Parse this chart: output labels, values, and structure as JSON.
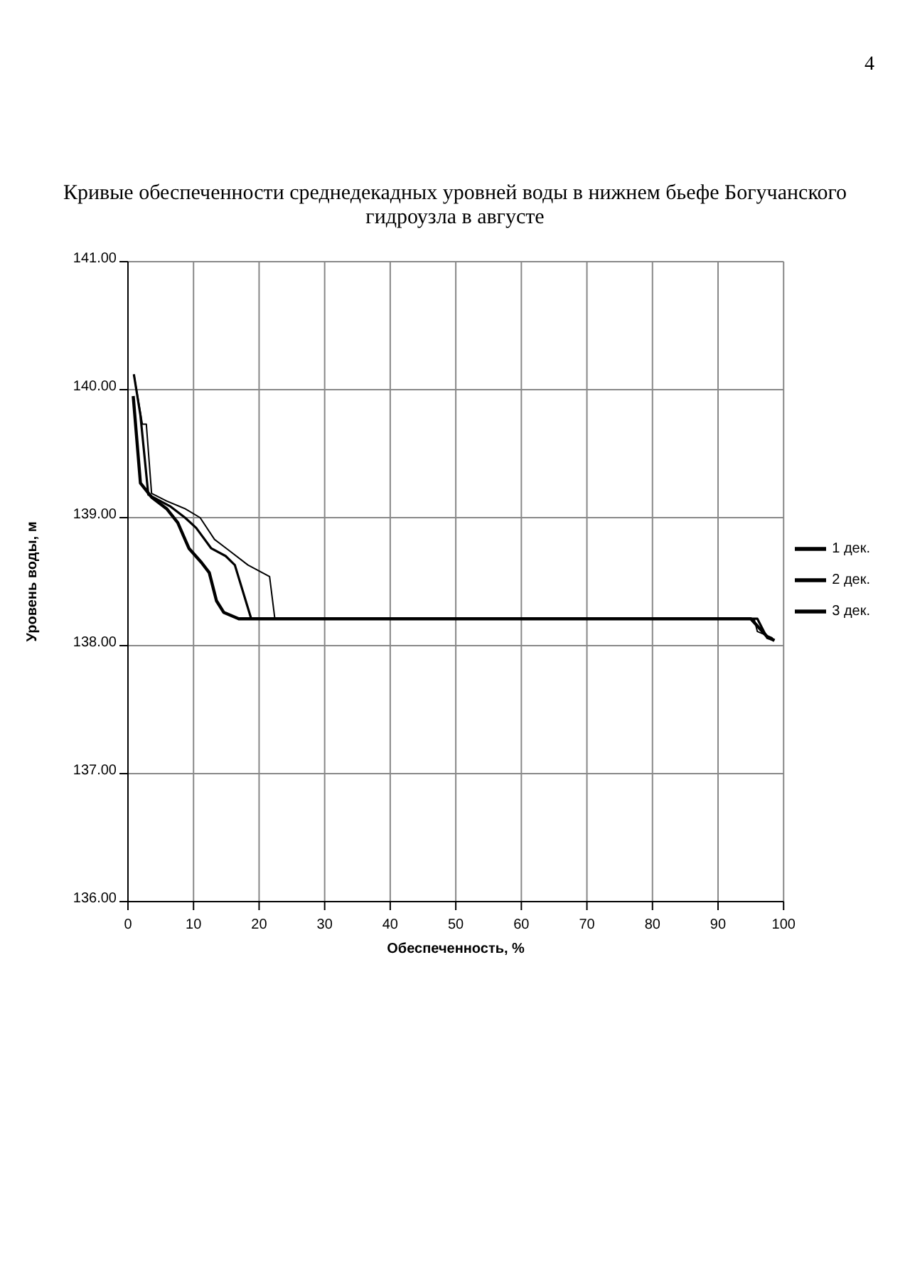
{
  "chart_data": {
    "type": "line",
    "title": "Кривые обеспеченности среднедекадных уровней воды в нижнем бьефе Богучанского гидроузла в августе",
    "xlabel": "Обеспеченность, %",
    "ylabel": "Уровень воды, м",
    "annotations": [
      "4"
    ],
    "xlim": [
      0,
      100
    ],
    "xticks": [
      0,
      10,
      20,
      30,
      40,
      50,
      60,
      70,
      80,
      90,
      100
    ],
    "ylim": [
      136,
      141
    ],
    "yticks": [
      {
        "value": 136,
        "label": "136.00"
      },
      {
        "value": 137,
        "label": "137.00"
      },
      {
        "value": 138,
        "label": "138.00"
      },
      {
        "value": 139,
        "label": "139.00"
      },
      {
        "value": 140,
        "label": "140.00"
      },
      {
        "value": 141,
        "label": "141.00"
      }
    ],
    "grid": true,
    "legend": "right",
    "marker": "none",
    "series": [
      {
        "name": "1 дек.",
        "color": "#000000",
        "x": [
          0.8,
          1.9,
          3.6,
          5.9,
          7.6,
          9.3,
          11.2,
          12.4,
          13.5,
          14.6,
          16.9,
          18.8,
          95,
          97.5,
          98.6
        ],
        "values": [
          139.95,
          139.27,
          139.16,
          139.07,
          138.96,
          138.76,
          138.65,
          138.57,
          138.35,
          138.26,
          138.21,
          138.21,
          138.21,
          138.07,
          138.04
        ]
      },
      {
        "name": "2 дек.",
        "color": "#000000",
        "x": [
          0.9,
          1.9,
          3.1,
          6.4,
          8.7,
          10.4,
          12.7,
          14.9,
          16.3,
          18.8,
          96,
          96.5,
          97.5,
          98.6
        ],
        "values": [
          140.12,
          139.8,
          139.18,
          139.09,
          139.0,
          138.92,
          138.76,
          138.7,
          138.63,
          138.21,
          138.21,
          138.16,
          138.06,
          138.04
        ]
      },
      {
        "name": "3 дек.",
        "color": "#000000",
        "x": [
          0.9,
          2.2,
          2.8,
          3.6,
          5.9,
          8.7,
          11.0,
          13.2,
          15.5,
          18.3,
          21.6,
          22.4,
          95.5,
          96,
          98.3
        ],
        "values": [
          140.12,
          139.73,
          139.73,
          139.19,
          139.13,
          139.07,
          139.0,
          138.83,
          138.74,
          138.63,
          138.54,
          138.21,
          138.21,
          138.11,
          138.06
        ]
      }
    ]
  }
}
